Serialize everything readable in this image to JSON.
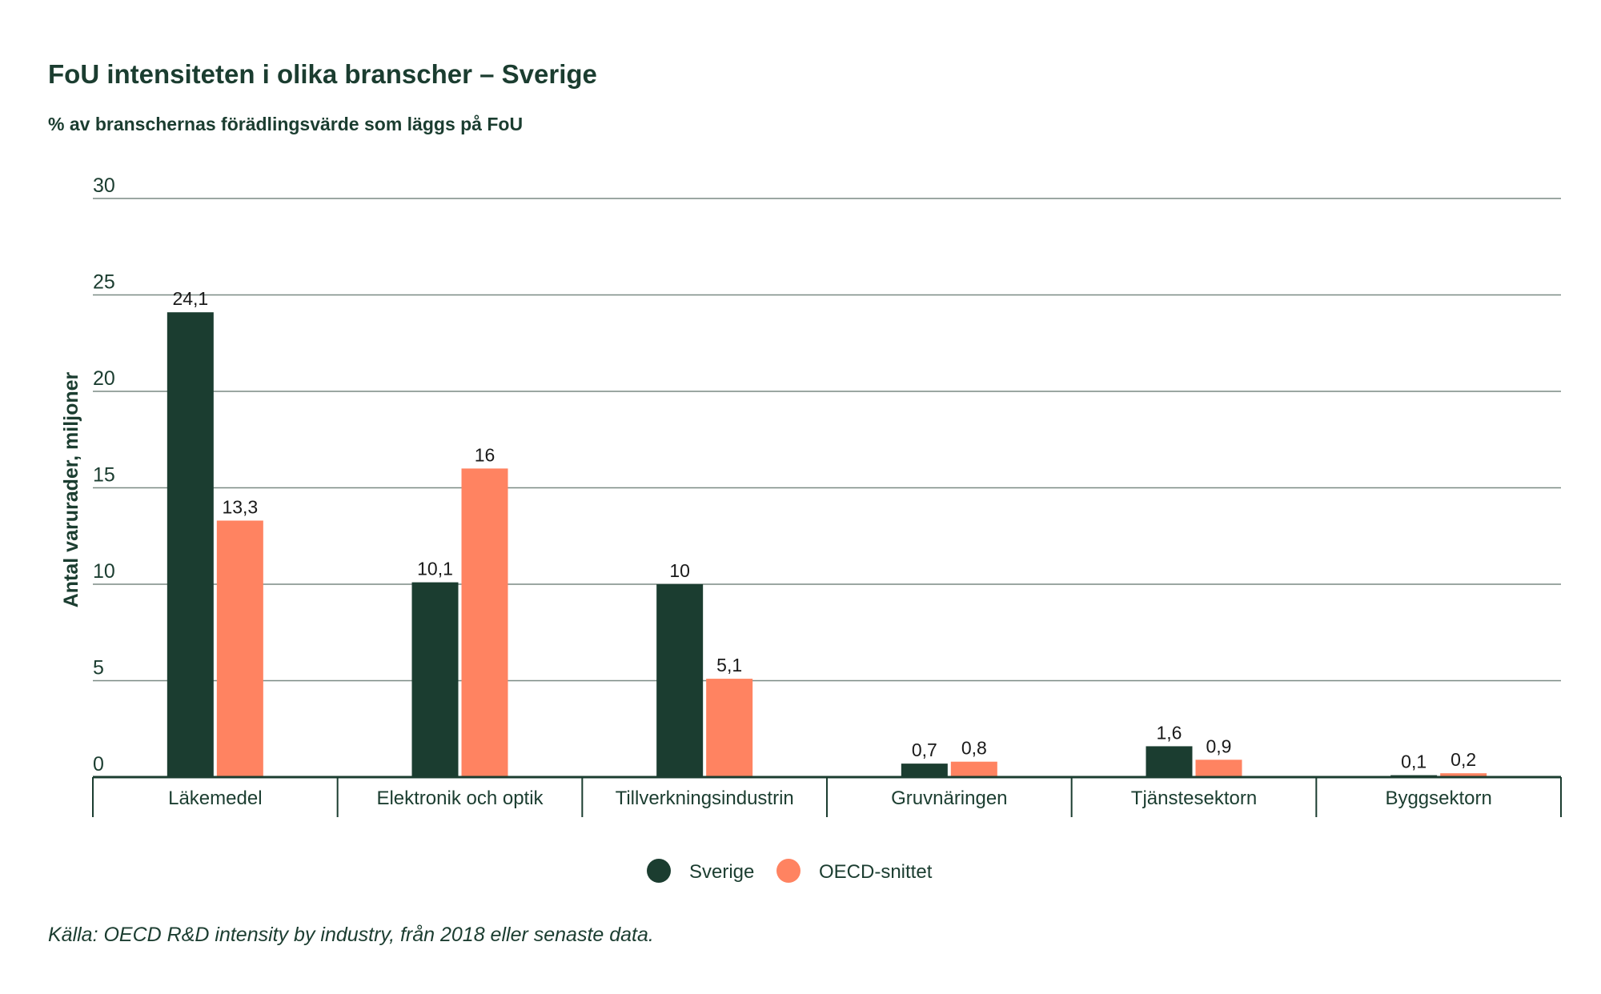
{
  "header": {
    "title": "FoU intensiteten i olika branscher – Sverige",
    "subtitle": "% av branschernas förädlingsvärde som läggs på FoU"
  },
  "footer": {
    "source": "Källa: OECD R&D intensity by industry, från 2018 eller senaste data."
  },
  "chart_data": {
    "type": "bar",
    "title": "FoU intensiteten i olika branscher – Sverige",
    "subtitle": "% av branschernas förädlingsvärde som läggs på FoU",
    "xlabel": "",
    "ylabel": "Antal varurader, miljoner",
    "ylim": [
      0,
      30
    ],
    "yticks": [
      0,
      5,
      10,
      15,
      20,
      25,
      30
    ],
    "grid": true,
    "legend": "bottom-center",
    "categories": [
      "Läkemedel",
      "Elektronik och optik",
      "Tillverkningsindustrin",
      "Gruvnäringen",
      "Tjänstesektorn",
      "Byggsektorn"
    ],
    "series": [
      {
        "name": "Sverige",
        "color": "#1b3d30",
        "values": [
          24.1,
          10.1,
          10,
          0.7,
          1.6,
          0.1
        ],
        "labels": [
          "24,1",
          "10,1",
          "10",
          "0,7",
          "1,6",
          "0,1"
        ]
      },
      {
        "name": "OECD-snittet",
        "color": "#ff8361",
        "values": [
          13.3,
          16,
          5.1,
          0.8,
          0.9,
          0.2
        ],
        "labels": [
          "13,3",
          "16",
          "5,1",
          "0,8",
          "0,9",
          "0,2"
        ]
      }
    ]
  }
}
